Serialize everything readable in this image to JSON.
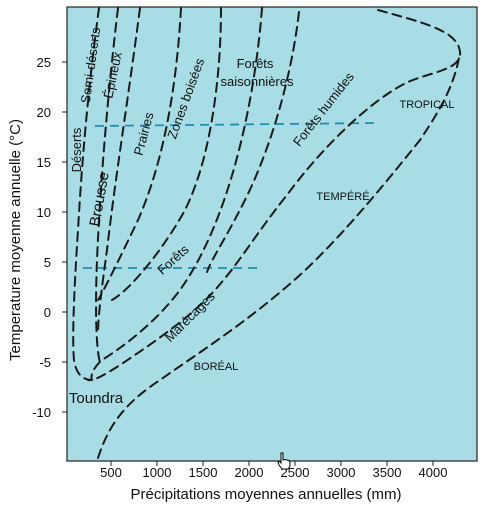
{
  "axes": {
    "xlabel": "Précipitations moyennes annuelles (mm)",
    "ylabel": "Temperature moyenne annuelle (°C)",
    "x_ticks": [
      "500",
      "1000",
      "1500",
      "2000",
      "2500",
      "3000",
      "3500",
      "4000"
    ],
    "y_ticks": [
      "25",
      "20",
      "15",
      "10",
      "5",
      "0",
      "-5",
      "-10"
    ]
  },
  "biomes": {
    "deserts": "Déserts",
    "semi_deserts": "Semi-déserts",
    "epineux": "Épineux",
    "brousse": "Brousse",
    "prairies": "Prairies",
    "zones_boisees": "Zones boisées",
    "forets_saison_1": "Forêts",
    "forets_saison_2": "saisonnières",
    "forets_humides": "Forêts humides",
    "forets": "Forêts",
    "marecages": "Marécages",
    "toundra": "Toundra"
  },
  "zones": {
    "tropical": "TROPICAL",
    "tempere": "TEMPÉRÉ",
    "boreal": "BORÉAL"
  },
  "colors": {
    "plot_background": "#a9dde6",
    "boundary_line": "#1a1a1a",
    "zone_line": "#1e8fb0"
  },
  "cursor": "hand-pointer-icon"
}
